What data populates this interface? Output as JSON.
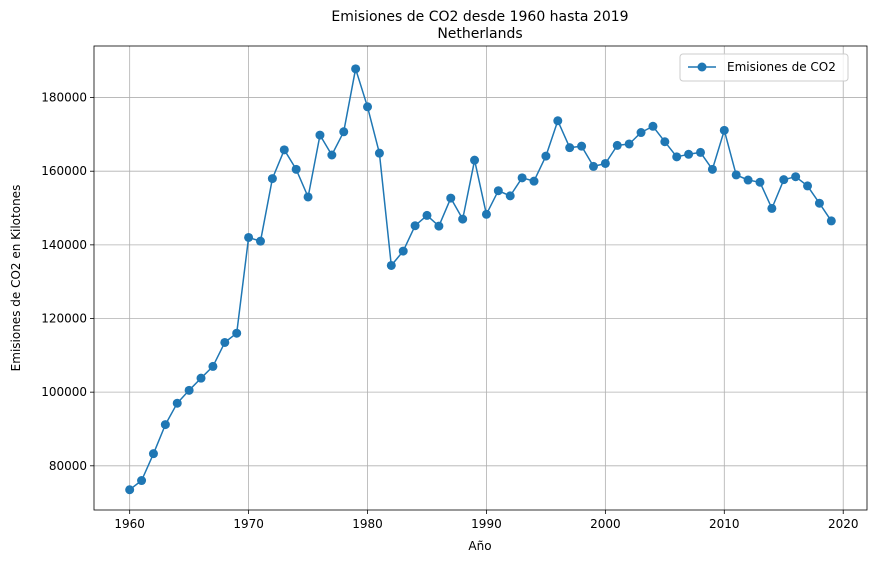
{
  "chart_data": {
    "type": "line",
    "title": "Emisiones de CO2 desde 1960 hasta 2019",
    "subtitle": "Netherlands",
    "xlabel": "Año",
    "ylabel": "Emisiones de CO2 en Kilotones",
    "xlim": [
      1957,
      2022
    ],
    "ylim": [
      68000,
      194000
    ],
    "x_ticks": [
      1960,
      1970,
      1980,
      1990,
      2000,
      2010,
      2020
    ],
    "y_ticks": [
      80000,
      100000,
      120000,
      140000,
      160000,
      180000
    ],
    "grid": true,
    "legend_position": "top-right",
    "colors": {
      "series": "#1f77b4",
      "grid": "#b0b0b0"
    },
    "x": [
      1960,
      1961,
      1962,
      1963,
      1964,
      1965,
      1966,
      1967,
      1968,
      1969,
      1970,
      1971,
      1972,
      1973,
      1974,
      1975,
      1976,
      1977,
      1978,
      1979,
      1980,
      1981,
      1982,
      1983,
      1984,
      1985,
      1986,
      1987,
      1988,
      1989,
      1990,
      1991,
      1992,
      1993,
      1994,
      1995,
      1996,
      1997,
      1998,
      1999,
      2000,
      2001,
      2002,
      2003,
      2004,
      2005,
      2006,
      2007,
      2008,
      2009,
      2010,
      2011,
      2012,
      2013,
      2014,
      2015,
      2016,
      2017,
      2018,
      2019
    ],
    "series": [
      {
        "name": "Emisiones de CO2",
        "values": [
          73500,
          76000,
          83300,
          91200,
          97000,
          100500,
          103800,
          107000,
          113500,
          116000,
          142000,
          141000,
          158000,
          165800,
          160500,
          153000,
          169800,
          164400,
          170700,
          187800,
          177500,
          164900,
          134400,
          138300,
          145200,
          148000,
          145100,
          152700,
          147000,
          163000,
          148300,
          154700,
          153300,
          158200,
          157300,
          164100,
          173700,
          166400,
          166800,
          161300,
          162100,
          167000,
          167400,
          170500,
          172200,
          168000,
          163900,
          164600,
          165100,
          160500,
          171100,
          159000,
          157600,
          157000,
          149900,
          157700,
          158500,
          156000,
          151300,
          146500
        ]
      }
    ]
  }
}
